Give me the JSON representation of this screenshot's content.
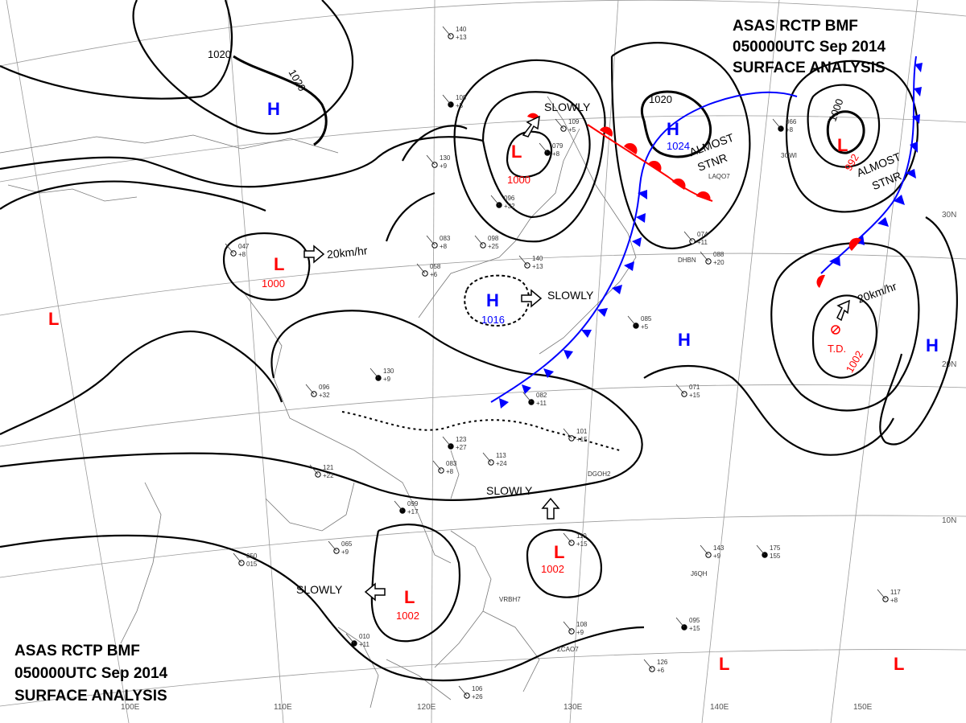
{
  "header": {
    "top_right": [
      "ASAS     RCTP    BMF",
      "050000UTC     Sep    2014",
      "SURFACE  ANALYSIS"
    ],
    "bottom_left": [
      "ASAS     RCTP    BMF",
      "050000UTC     Sep    2014",
      "SURFACE  ANALYSIS"
    ]
  },
  "longitude_labels": [
    "100E",
    "110E",
    "120E",
    "130E",
    "140E",
    "150E"
  ],
  "latitude_labels": [
    "30N",
    "20N",
    "10N"
  ],
  "isobar_labels": [
    "1020",
    "1020",
    "1020",
    "1000"
  ],
  "pressure_centers": [
    {
      "type": "H",
      "value": "",
      "color": "#0000ff"
    },
    {
      "type": "L",
      "value": "1000",
      "color": "#ff0000"
    },
    {
      "type": "H",
      "value": "1024",
      "color": "#0000ff"
    },
    {
      "type": "L",
      "value": "992",
      "color": "#ff0000"
    },
    {
      "type": "L",
      "value": "1000",
      "color": "#ff0000"
    },
    {
      "type": "H",
      "value": "1016",
      "color": "#0000ff"
    },
    {
      "type": "H",
      "value": "",
      "color": "#0000ff"
    },
    {
      "type": "H",
      "value": "",
      "color": "#0000ff"
    },
    {
      "type": "L",
      "value": "",
      "color": "#ff0000"
    },
    {
      "type": "L",
      "value": "1002",
      "color": "#ff0000"
    },
    {
      "type": "L",
      "value": "1002",
      "color": "#ff0000"
    },
    {
      "type": "L",
      "value": "",
      "color": "#ff0000"
    },
    {
      "type": "L",
      "value": "",
      "color": "#ff0000"
    }
  ],
  "td": {
    "label": "T.D.",
    "value": "1002"
  },
  "motion_labels": {
    "slowly_ne": "SLOWLY",
    "almost_stnr_1": [
      "ALMOST",
      "STNR"
    ],
    "almost_stnr_2": [
      "ALMOST",
      "STNR"
    ],
    "speed_west": "20km/hr",
    "speed_east": "20km/hr",
    "slowly_h": "SLOWLY",
    "slowly_luzon": "SLOWLY",
    "slowly_scs": "SLOWLY"
  },
  "station_samples": [
    "109",
    "+5",
    "140",
    "+13",
    "130",
    "+9",
    "096",
    "+32",
    "083",
    "+8",
    "098",
    "+25",
    "123",
    "+27",
    "113",
    "+24",
    "108",
    "+9",
    "095",
    "+15",
    "126",
    "+6",
    "143",
    "+9",
    "175",
    "155",
    "117",
    "+8",
    "071",
    "+15",
    "085",
    "+5",
    "074",
    "+11",
    "088",
    "+20",
    "066",
    "+8",
    "065",
    "+9",
    "050",
    "015",
    "010",
    "+11",
    "106",
    "+26",
    "121",
    "+22",
    "099",
    "+17",
    "047",
    "+8",
    "058",
    "+6",
    "082",
    "+11",
    "101",
    "+15",
    "110",
    "+15",
    "079",
    "+8"
  ],
  "station_ids": [
    "DGOH2",
    "VRBH7",
    "ZCAO7",
    "J6QH",
    "LAQO7",
    "DHBN",
    "3CWI"
  ],
  "colors": {
    "high": "#0000ff",
    "low": "#ff0000",
    "isobar": "#000000",
    "grid": "#9a9a9a",
    "coast": "#777777",
    "cold_front": "#0000ff",
    "warm_front": "#ff0000"
  }
}
